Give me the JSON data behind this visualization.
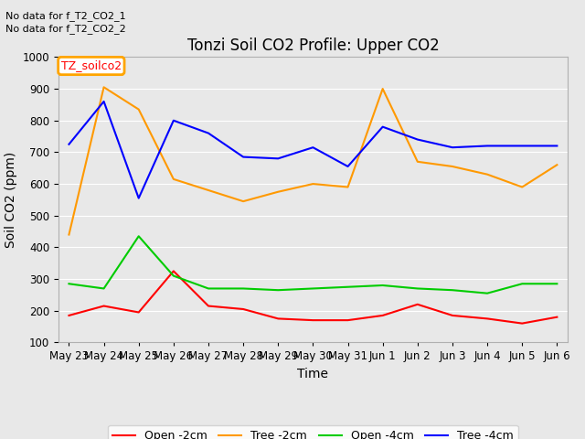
{
  "title": "Tonzi Soil CO2 Profile: Upper CO2",
  "ylabel": "Soil CO2 (ppm)",
  "xlabel": "Time",
  "no_data_text_1": "No data for f_T2_CO2_1",
  "no_data_text_2": "No data for f_T2_CO2_2",
  "legend_label": "TZ_soilco2",
  "ylim": [
    100,
    1000
  ],
  "x_labels": [
    "May 23",
    "May 24",
    "May 25",
    "May 26",
    "May 27",
    "May 28",
    "May 29",
    "May 30",
    "May 31",
    "Jun 1",
    "Jun 2",
    "Jun 3",
    "Jun 4",
    "Jun 5",
    "Jun 6"
  ],
  "open_2cm_color": "#ff0000",
  "open_2cm_y": [
    185,
    215,
    195,
    325,
    215,
    205,
    175,
    170,
    170,
    185,
    220,
    185,
    175,
    160,
    180
  ],
  "tree_2cm_color": "#ff9900",
  "tree_2cm_y": [
    440,
    905,
    835,
    615,
    580,
    545,
    575,
    600,
    590,
    900,
    670,
    655,
    630,
    590,
    660
  ],
  "open_4cm_color": "#00cc00",
  "open_4cm_y": [
    285,
    270,
    435,
    310,
    270,
    270,
    265,
    270,
    275,
    280,
    270,
    265,
    255,
    285,
    285
  ],
  "tree_4cm_color": "#0000ff",
  "tree_4cm_y": [
    725,
    860,
    555,
    800,
    760,
    685,
    680,
    715,
    655,
    780,
    740,
    715,
    720,
    720,
    720
  ],
  "bg_color": "#e8e8e8",
  "grid_color": "#ffffff",
  "title_fontsize": 12,
  "axis_label_fontsize": 10,
  "tick_fontsize": 8.5,
  "nodata_fontsize": 8,
  "legend_fontsize": 9
}
